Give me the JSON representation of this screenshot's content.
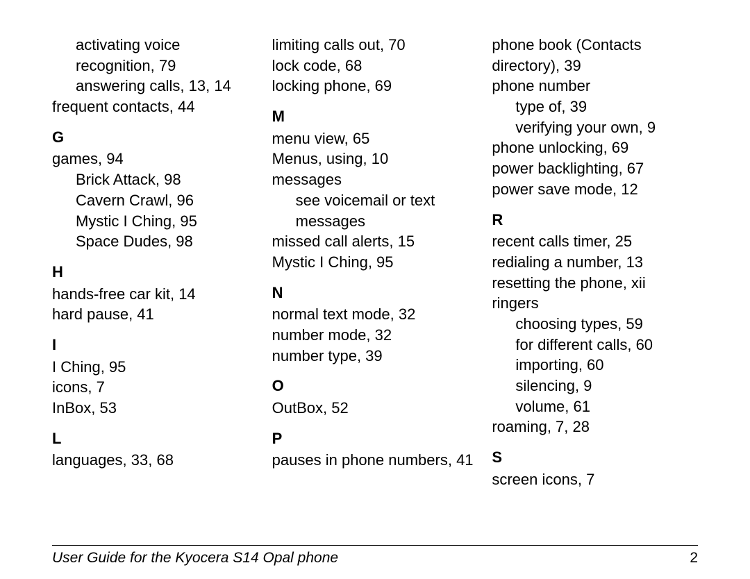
{
  "col1": {
    "pre_sub": [
      "activating voice recognition, 79",
      "answering calls, 13, 14"
    ],
    "pre_entry": "frequent contacts, 44",
    "G": {
      "letter": "G",
      "entries": [
        {
          "text": "games, 94",
          "sub": [
            "Brick Attack, 98",
            "Cavern Crawl, 96",
            "Mystic I Ching, 95",
            "Space Dudes, 98"
          ]
        }
      ]
    },
    "H": {
      "letter": "H",
      "entries": [
        {
          "text": "hands-free car kit, 14"
        },
        {
          "text": "hard pause, 41"
        }
      ]
    },
    "I": {
      "letter": "I",
      "entries": [
        {
          "text": "I Ching, 95"
        },
        {
          "text": "icons, 7"
        },
        {
          "text": "InBox, 53"
        }
      ]
    },
    "L": {
      "letter": "L",
      "entries": [
        {
          "text": "languages, 33, 68"
        }
      ]
    }
  },
  "col2": {
    "pre": [
      "limiting calls out, 70",
      "lock code, 68",
      "locking phone, 69"
    ],
    "M": {
      "letter": "M",
      "entries": [
        {
          "text": "menu view, 65"
        },
        {
          "text": "Menus, using, 10"
        },
        {
          "text": "messages",
          "sub": [
            "see voicemail or text messages"
          ]
        },
        {
          "text": "missed call alerts, 15"
        },
        {
          "text": "Mystic I Ching, 95"
        }
      ]
    },
    "N": {
      "letter": "N",
      "entries": [
        {
          "text": "normal text mode, 32"
        },
        {
          "text": "number mode, 32"
        },
        {
          "text": "number type, 39"
        }
      ]
    },
    "O": {
      "letter": "O",
      "entries": [
        {
          "text": "OutBox, 52"
        }
      ]
    },
    "P": {
      "letter": "P",
      "entries": [
        {
          "text": "pauses in phone numbers, 41"
        }
      ]
    }
  },
  "col3": {
    "pre": [
      "phone book (Contacts directory), 39"
    ],
    "pre2": {
      "text": "phone number",
      "sub": [
        "type of, 39",
        "verifying your own, 9"
      ]
    },
    "pre3": [
      "phone unlocking, 69",
      "power backlighting, 67",
      "power save mode, 12"
    ],
    "R": {
      "letter": "R",
      "entries": [
        {
          "text": "recent calls timer, 25"
        },
        {
          "text": "redialing a number, 13"
        },
        {
          "text": "resetting the phone, xii"
        },
        {
          "text": "ringers",
          "sub": [
            "choosing types, 59",
            "for different calls, 60",
            "importing, 60",
            "silencing, 9",
            "volume, 61"
          ]
        },
        {
          "text": "roaming, 7, 28"
        }
      ]
    },
    "S": {
      "letter": "S",
      "entries": [
        {
          "text": "screen icons, 7"
        }
      ]
    }
  },
  "footer": {
    "title": "User Guide for the Kyocera S14 Opal phone",
    "page": "2"
  }
}
